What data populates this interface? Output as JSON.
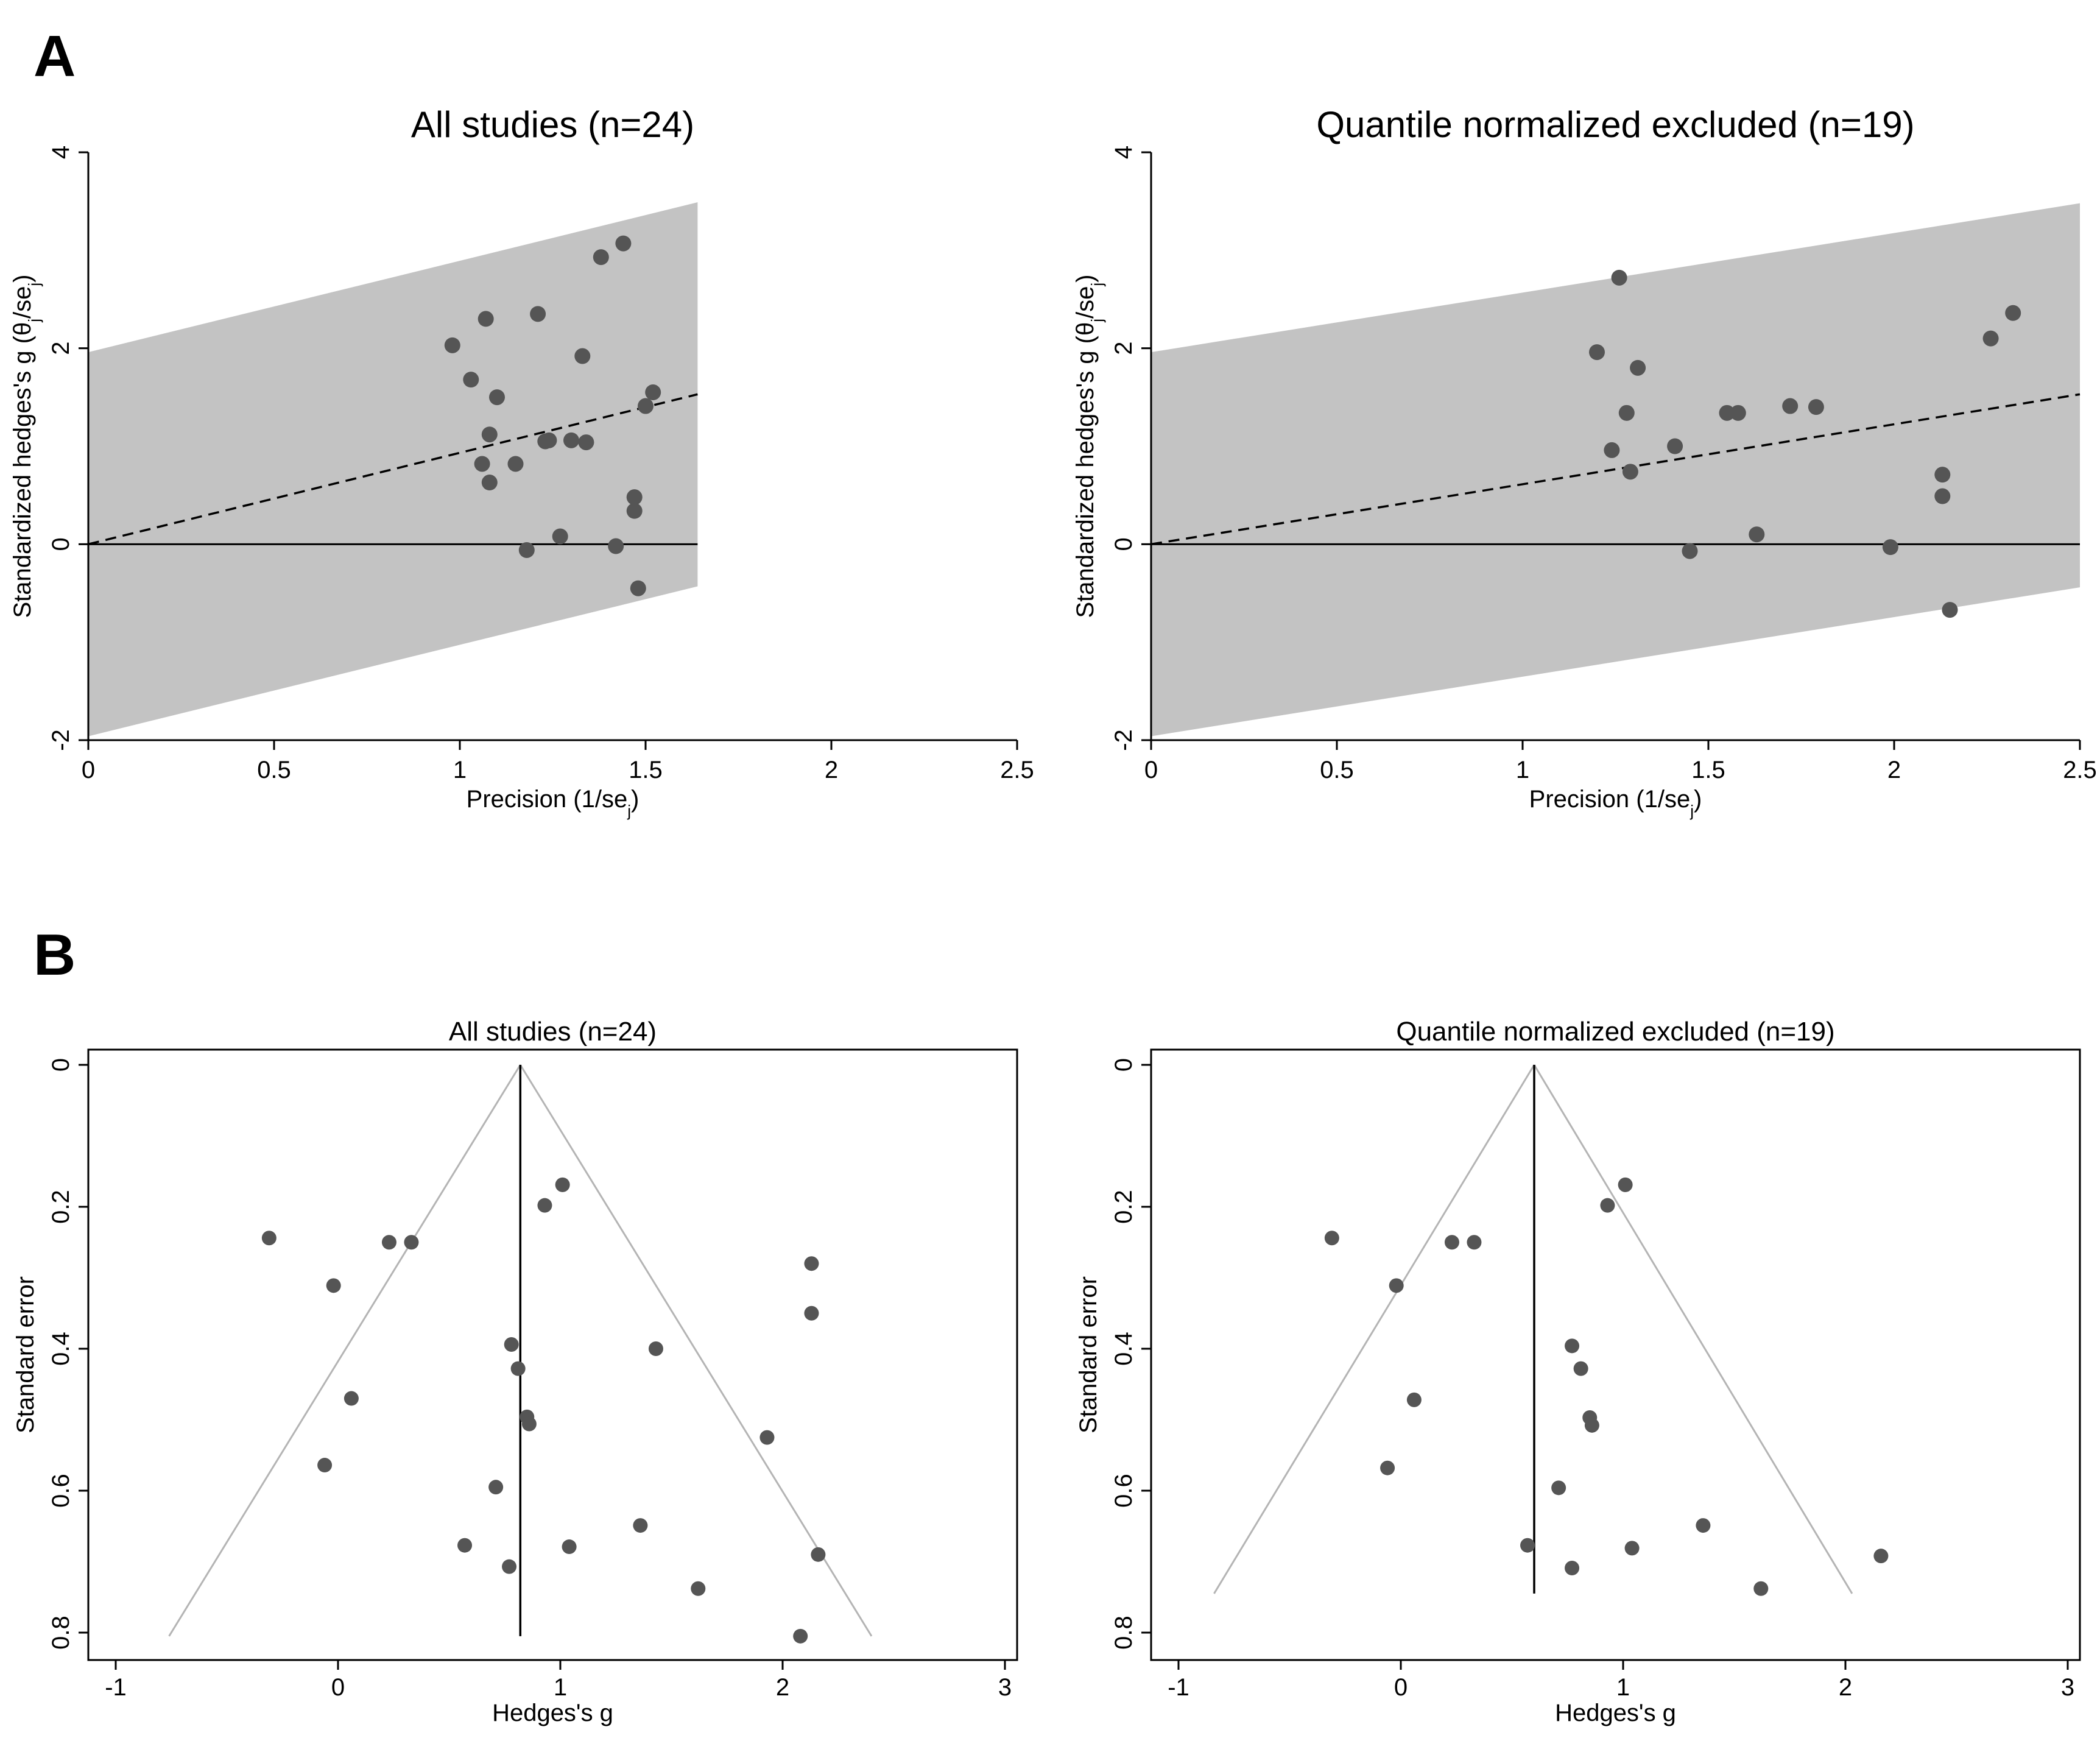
{
  "panels": {
    "A": "A",
    "B": "B"
  },
  "colors": {
    "band": "#c3c3c3",
    "point": "#555555",
    "axis": "#000000",
    "funnel": "#b4b4b4"
  },
  "chart_data": [
    {
      "type": "scatter",
      "id": "galbraith-all",
      "panel": "A",
      "title": "All studies (n=24)",
      "xlabel": "Precision (1/se",
      "xlabel_sub": "j",
      "xlabel_tail": ")",
      "ylabel": "Standardized hedges's g (θ",
      "ylabel_sub1": "j",
      "ylabel_mid": "/se",
      "ylabel_sub2": "j",
      "ylabel_tail": ")",
      "xlim": [
        0,
        2.5
      ],
      "ylim": [
        -2,
        4
      ],
      "xticks": [
        "0",
        "0.5",
        "1",
        "1.5",
        "2",
        "2.5"
      ],
      "yticks": [
        "-2",
        "0",
        "2",
        "4"
      ],
      "band": {
        "x": [
          0,
          1.64
        ],
        "lower": [
          -1.96,
          -0.43
        ],
        "upper": [
          1.96,
          3.49
        ]
      },
      "regression": {
        "x": [
          0,
          1.64
        ],
        "y": [
          0,
          1.53
        ]
      },
      "points": {
        "x": [
          0.98,
          1.03,
          1.07,
          1.08,
          1.1,
          1.06,
          1.08,
          1.15,
          1.21,
          1.23,
          1.24,
          1.3,
          1.33,
          1.34,
          1.38,
          1.44,
          1.47,
          1.47,
          1.48,
          1.5,
          1.52,
          1.18,
          1.27,
          1.42
        ],
        "y": [
          2.03,
          1.68,
          2.3,
          1.12,
          1.5,
          0.82,
          0.63,
          0.82,
          2.35,
          1.05,
          1.06,
          1.06,
          1.92,
          1.04,
          2.93,
          3.07,
          0.48,
          0.34,
          -0.45,
          1.41,
          1.55,
          -0.06,
          0.08,
          -0.02
        ]
      }
    },
    {
      "type": "scatter",
      "id": "galbraith-excl",
      "panel": "A",
      "title": "Quantile normalized excluded (n=19)",
      "xlabel": "Precision (1/se",
      "xlabel_sub": "j",
      "xlabel_tail": ")",
      "ylabel": "Standardized hedges's g (θ",
      "ylabel_sub1": "j",
      "ylabel_mid": "/se",
      "ylabel_sub2": "j",
      "ylabel_tail": ")",
      "xlim": [
        0,
        2.5
      ],
      "ylim": [
        -2,
        4
      ],
      "xticks": [
        "0",
        "0.5",
        "1",
        "1.5",
        "2",
        "2.5"
      ],
      "yticks": [
        "-2",
        "0",
        "2",
        "4"
      ],
      "band": {
        "x": [
          0,
          2.5
        ],
        "lower": [
          -1.96,
          -0.44
        ],
        "upper": [
          1.96,
          3.48
        ]
      },
      "regression": {
        "x": [
          0,
          2.5
        ],
        "y": [
          0,
          1.53
        ]
      },
      "points": {
        "x": [
          1.2,
          1.24,
          1.26,
          1.28,
          1.29,
          1.31,
          1.41,
          1.45,
          1.55,
          1.58,
          1.63,
          1.72,
          1.79,
          1.99,
          2.13,
          2.13,
          2.15,
          2.26,
          2.32
        ],
        "y": [
          1.96,
          0.96,
          2.72,
          1.34,
          0.74,
          1.8,
          1.0,
          -0.07,
          1.34,
          1.34,
          0.1,
          1.41,
          1.4,
          -0.03,
          0.71,
          0.49,
          -0.67,
          2.1,
          2.36
        ]
      }
    },
    {
      "type": "scatter",
      "id": "funnel-all",
      "panel": "B",
      "title": "All studies (n=24)",
      "xlabel": "Hedges's g",
      "ylabel": "Standard error",
      "xlim": [
        -1.1,
        3
      ],
      "ylim_reversed": [
        0,
        0.82
      ],
      "xticks": [
        "-1",
        "0",
        "1",
        "2",
        "3"
      ],
      "yticks": [
        "0",
        "0.2",
        "0.4",
        "0.6",
        "0.8"
      ],
      "pooled": 0.82,
      "funnel": {
        "apex": [
          0.82,
          0
        ],
        "bottom_se": 0.805,
        "bottom_left": -0.76,
        "bottom_right": 2.4
      },
      "points": {
        "x": [
          1.01,
          0.93,
          -0.31,
          0.23,
          0.33,
          2.13,
          -0.02,
          2.13,
          0.78,
          1.43,
          0.81,
          0.06,
          0.85,
          0.86,
          1.93,
          -0.06,
          0.71,
          1.36,
          0.57,
          1.04,
          0.77,
          2.16,
          1.62,
          2.08
        ],
        "y": [
          0.169,
          0.198,
          0.244,
          0.25,
          0.25,
          0.28,
          0.311,
          0.35,
          0.394,
          0.4,
          0.428,
          0.47,
          0.496,
          0.506,
          0.525,
          0.564,
          0.595,
          0.649,
          0.677,
          0.679,
          0.707,
          0.69,
          0.738,
          0.805
        ]
      }
    },
    {
      "type": "scatter",
      "id": "funnel-excl",
      "panel": "B",
      "title": "Quantile normalized excluded (n=19)",
      "xlabel": "Hedges's g",
      "ylabel": "Standard error",
      "xlim": [
        -1.1,
        3
      ],
      "ylim_reversed": [
        0,
        0.82
      ],
      "xticks": [
        "-1",
        "0",
        "1",
        "2",
        "3"
      ],
      "yticks": [
        "0",
        "0.2",
        "0.4",
        "0.6",
        "0.8"
      ],
      "pooled": 0.6,
      "funnel": {
        "apex": [
          0.6,
          0
        ],
        "bottom_se": 0.745,
        "bottom_left": -0.84,
        "bottom_right": 2.03
      },
      "points": {
        "x": [
          1.01,
          0.93,
          -0.31,
          0.23,
          0.33,
          -0.02,
          0.77,
          0.81,
          0.06,
          0.85,
          0.86,
          -0.06,
          0.71,
          1.36,
          0.57,
          1.04,
          0.77,
          2.16,
          1.62
        ],
        "y": [
          0.169,
          0.198,
          0.244,
          0.25,
          0.25,
          0.311,
          0.396,
          0.428,
          0.472,
          0.497,
          0.508,
          0.568,
          0.596,
          0.649,
          0.677,
          0.681,
          0.709,
          0.692,
          0.738
        ]
      }
    }
  ]
}
